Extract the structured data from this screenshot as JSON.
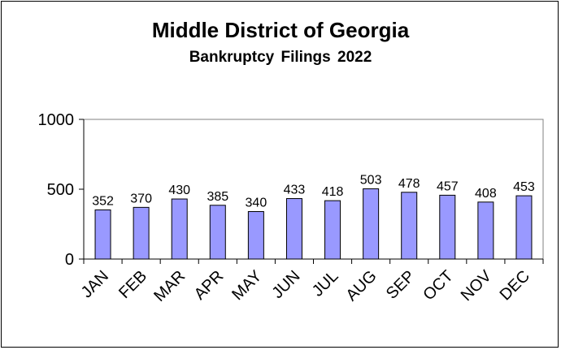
{
  "chart_data": {
    "type": "bar",
    "title": "Middle District of Georgia",
    "subtitle": "Bankruptcy  Filings 2022",
    "categories": [
      "JAN",
      "FEB",
      "MAR",
      "APR",
      "MAY",
      "JUN",
      "JUL",
      "AUG",
      "SEP",
      "OCT",
      "NOV",
      "DEC"
    ],
    "values": [
      352,
      370,
      430,
      385,
      340,
      433,
      418,
      503,
      478,
      457,
      408,
      453
    ],
    "ylim": [
      0,
      1000
    ],
    "yticks": [
      0,
      500,
      1000
    ],
    "xlabel": "",
    "ylabel": "",
    "grid": false,
    "legend": "none",
    "bar_color": "#9999ff",
    "data_labels": true
  }
}
